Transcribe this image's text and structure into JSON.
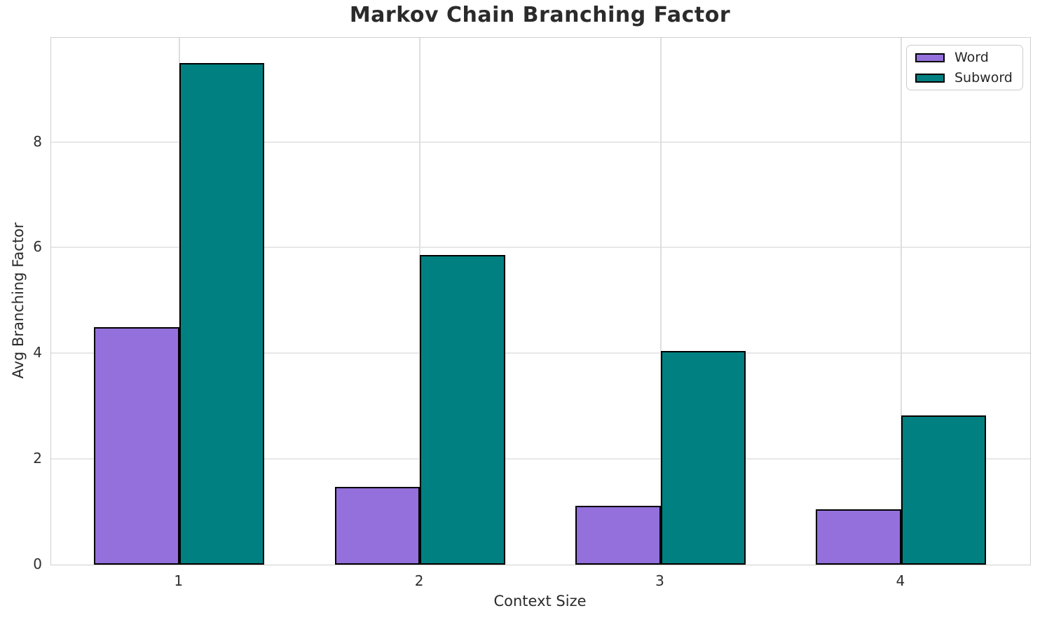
{
  "chart_data": {
    "type": "bar",
    "title": "Markov Chain Branching Factor",
    "xlabel": "Context Size",
    "ylabel": "Avg Branching Factor",
    "categories": [
      "1",
      "2",
      "3",
      "4"
    ],
    "series": [
      {
        "name": "Word",
        "color": "#9370DB",
        "values": [
          4.49,
          1.47,
          1.12,
          1.05
        ]
      },
      {
        "name": "Subword",
        "color": "#008080",
        "values": [
          9.49,
          5.86,
          4.05,
          2.82
        ]
      }
    ],
    "bar_edge_color": "#000000",
    "yticks": [
      0,
      2,
      4,
      6,
      8
    ],
    "ylim": [
      0,
      9.97
    ],
    "grid": true,
    "legend_position": "upper right",
    "text_color": "#2b2b2b"
  }
}
